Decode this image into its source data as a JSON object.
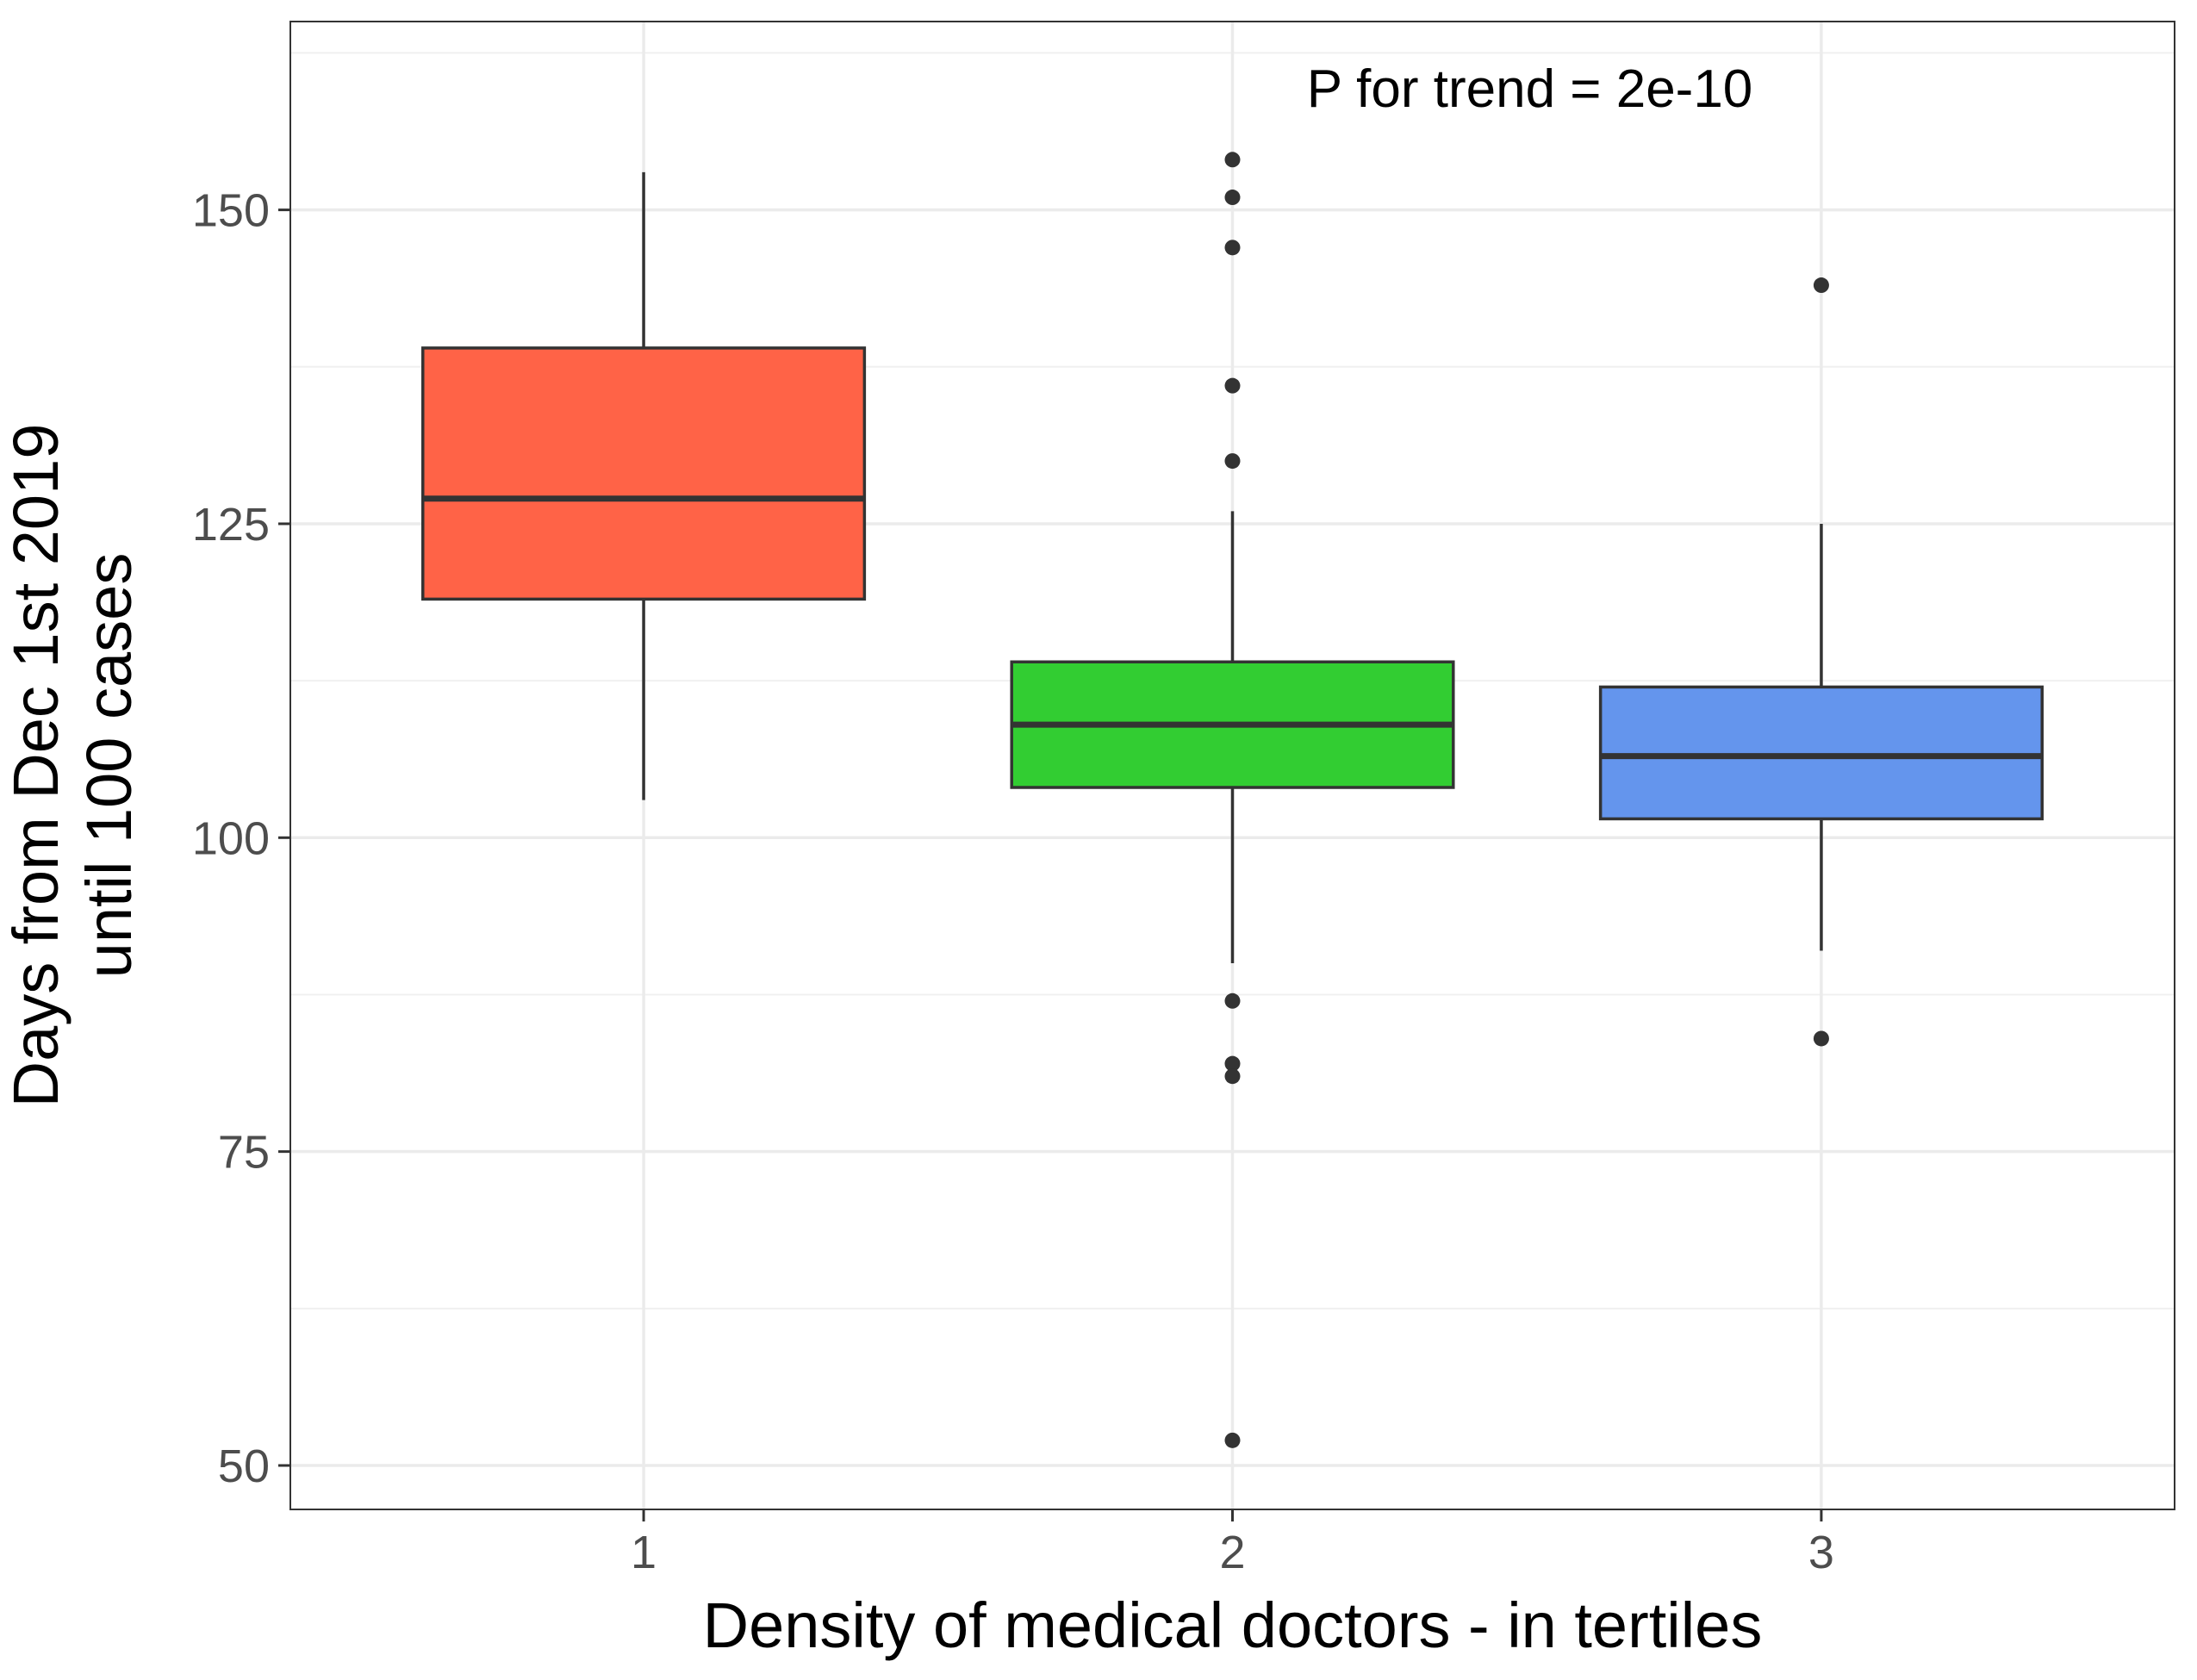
{
  "chart_data": {
    "type": "boxplot",
    "xlabel": "Density of medical doctors - in tertiles",
    "ylabel_lines": [
      "Days from Dec 1st 2019",
      "until 100 cases"
    ],
    "annotation": "P for trend = 2e-10",
    "ylim": [
      46.5,
      165
    ],
    "yticks": [
      50,
      75,
      100,
      125,
      150
    ],
    "grid": true,
    "categories": [
      "1",
      "2",
      "3"
    ],
    "boxes": [
      {
        "category": "1",
        "color": "#FF6347",
        "whisker_low": 103,
        "q1": 119,
        "median": 127,
        "q3": 139,
        "whisker_high": 153,
        "outliers": []
      },
      {
        "category": "2",
        "color": "#32CD32",
        "whisker_low": 90,
        "q1": 104,
        "median": 109,
        "q3": 114,
        "whisker_high": 126,
        "outliers": [
          154,
          151,
          147,
          136,
          130,
          87,
          82,
          81,
          52
        ]
      },
      {
        "category": "3",
        "color": "#6495ED",
        "whisker_low": 91,
        "q1": 101.5,
        "median": 106.5,
        "q3": 112,
        "whisker_high": 125,
        "outliers": [
          144,
          84
        ]
      }
    ]
  }
}
